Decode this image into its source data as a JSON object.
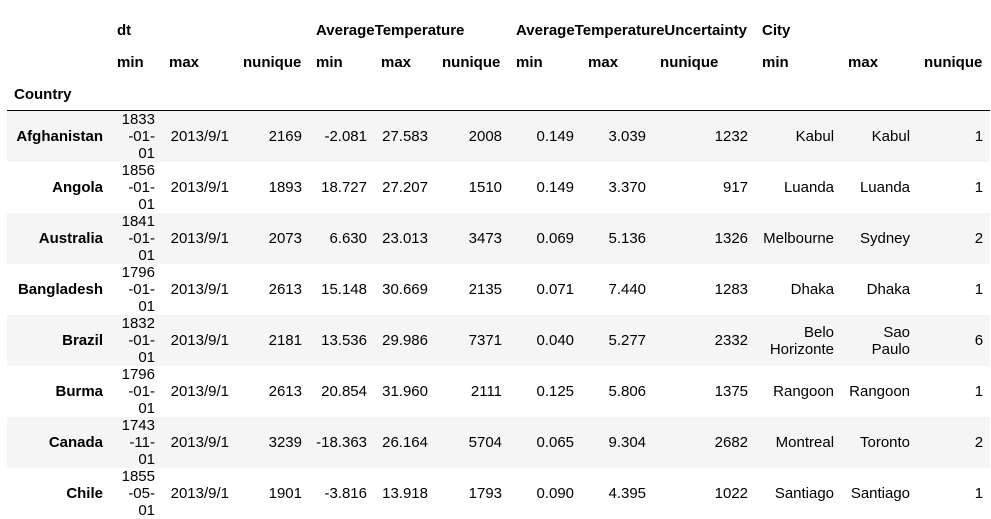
{
  "table": {
    "groups": [
      "dt",
      "AverageTemperature",
      "AverageTemperatureUncertainty",
      "City"
    ],
    "subheaders": [
      "min",
      "max",
      "nunique",
      "min",
      "max",
      "nunique",
      "min",
      "max",
      "nunique",
      "min",
      "max",
      "nunique"
    ],
    "index_name": "Country",
    "rows": [
      [
        "Afghanistan",
        "1833-01-01",
        "2013/9/1",
        "2169",
        "-2.081",
        "27.583",
        "2008",
        "0.149",
        "3.039",
        "1232",
        "Kabul",
        "Kabul",
        "1"
      ],
      [
        "Angola",
        "1856-01-01",
        "2013/9/1",
        "1893",
        "18.727",
        "27.207",
        "1510",
        "0.149",
        "3.370",
        "917",
        "Luanda",
        "Luanda",
        "1"
      ],
      [
        "Australia",
        "1841-01-01",
        "2013/9/1",
        "2073",
        "6.630",
        "23.013",
        "3473",
        "0.069",
        "5.136",
        "1326",
        "Melbourne",
        "Sydney",
        "2"
      ],
      [
        "Bangladesh",
        "1796-01-01",
        "2013/9/1",
        "2613",
        "15.148",
        "30.669",
        "2135",
        "0.071",
        "7.440",
        "1283",
        "Dhaka",
        "Dhaka",
        "1"
      ],
      [
        "Brazil",
        "1832-01-01",
        "2013/9/1",
        "2181",
        "13.536",
        "29.986",
        "7371",
        "0.040",
        "5.277",
        "2332",
        "Belo Horizonte",
        "Sao Paulo",
        "6"
      ],
      [
        "Burma",
        "1796-01-01",
        "2013/9/1",
        "2613",
        "20.854",
        "31.960",
        "2111",
        "0.125",
        "5.806",
        "1375",
        "Rangoon",
        "Rangoon",
        "1"
      ],
      [
        "Canada",
        "1743-11-01",
        "2013/9/1",
        "3239",
        "-18.363",
        "26.164",
        "5704",
        "0.065",
        "9.304",
        "2682",
        "Montreal",
        "Toronto",
        "2"
      ],
      [
        "Chile",
        "1855-05-01",
        "2013/9/1",
        "1901",
        "-3.816",
        "13.918",
        "1793",
        "0.090",
        "4.395",
        "1022",
        "Santiago",
        "Santiago",
        "1"
      ]
    ]
  }
}
